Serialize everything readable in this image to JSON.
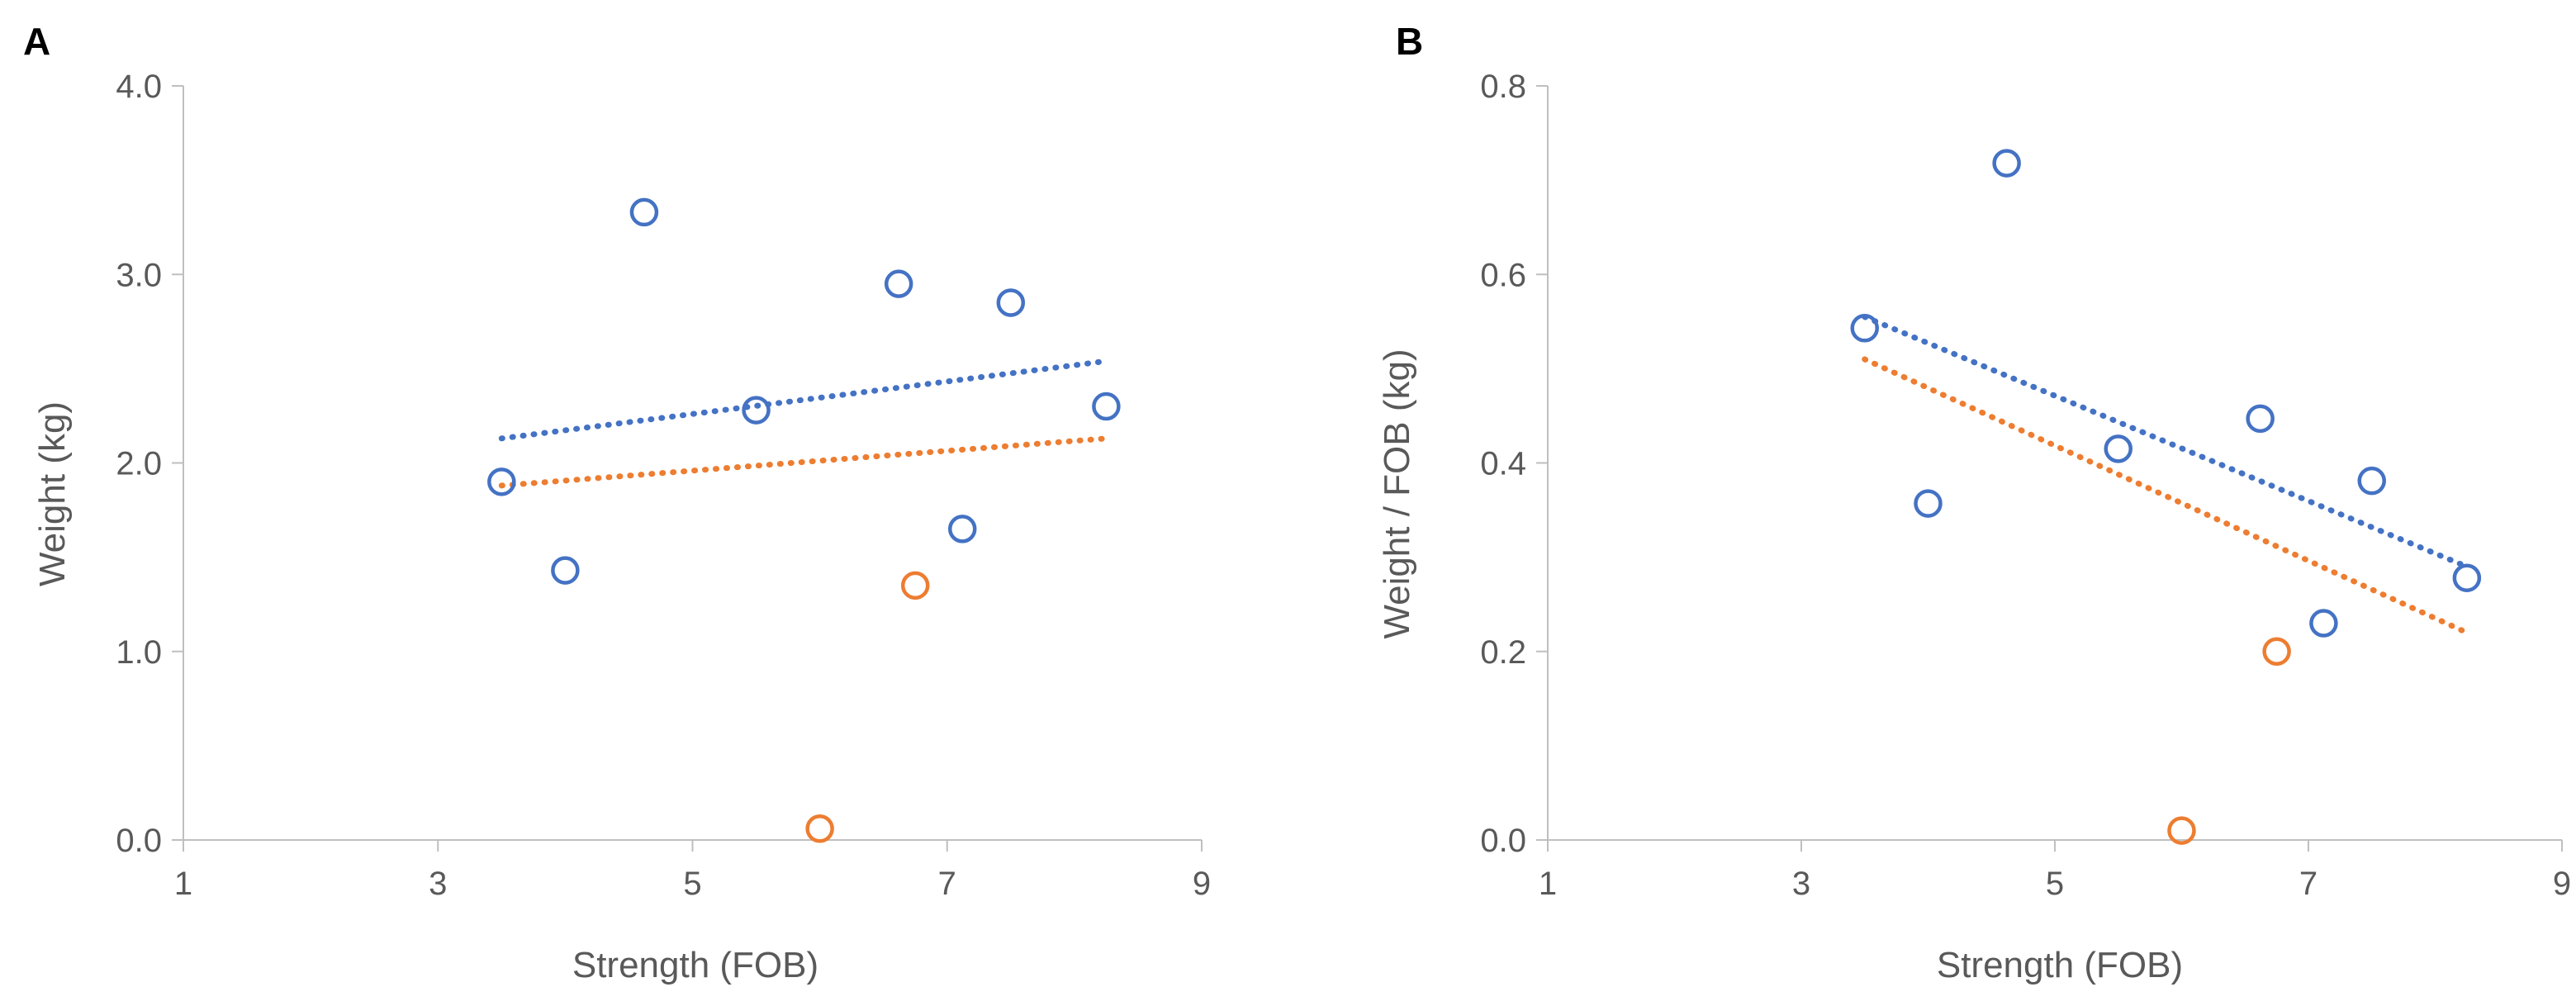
{
  "colors": {
    "series1": "#4472C4",
    "series2": "#ED7D31",
    "axis": "#BFBFBF",
    "text": "#595959",
    "panel_label": "#000000"
  },
  "chart_data": [
    {
      "panel": "A",
      "type": "scatter",
      "title": "",
      "xlabel": "Strength (FOB)",
      "ylabel": "Weight (kg)",
      "xlim": [
        1,
        9
      ],
      "ylim": [
        0.0,
        4.0
      ],
      "xticks": [
        "1",
        "3",
        "5",
        "7",
        "9"
      ],
      "yticks": [
        "0.0",
        "1.0",
        "2.0",
        "3.0",
        "4.0"
      ],
      "grid": false,
      "legend": "none",
      "series": [
        {
          "name": "series 1 (blue)",
          "marker": "open-circle",
          "points": [
            {
              "x": 3.5,
              "y": 1.9
            },
            {
              "x": 4.0,
              "y": 1.43
            },
            {
              "x": 4.62,
              "y": 3.33
            },
            {
              "x": 5.5,
              "y": 2.28
            },
            {
              "x": 6.62,
              "y": 2.95
            },
            {
              "x": 7.12,
              "y": 1.65
            },
            {
              "x": 7.5,
              "y": 2.85
            },
            {
              "x": 8.25,
              "y": 2.3
            }
          ],
          "trendline": {
            "style": "dotted",
            "x1": 3.5,
            "y1": 2.13,
            "x2": 8.25,
            "y2": 2.54
          }
        },
        {
          "name": "series 2 (orange)",
          "marker": "open-circle",
          "points": [
            {
              "x": 6.0,
              "y": 0.06
            },
            {
              "x": 6.75,
              "y": 1.35
            }
          ],
          "trendline": {
            "style": "dotted",
            "x1": 3.5,
            "y1": 1.88,
            "x2": 8.25,
            "y2": 2.13
          }
        }
      ]
    },
    {
      "panel": "B",
      "type": "scatter",
      "title": "",
      "xlabel": "Strength (FOB)",
      "ylabel": "Weight / FOB (kg)",
      "xlim": [
        1,
        9
      ],
      "ylim": [
        0.0,
        0.8
      ],
      "xticks": [
        "1",
        "3",
        "5",
        "7",
        "9"
      ],
      "yticks": [
        "0.0",
        "0.2",
        "0.4",
        "0.6",
        "0.8"
      ],
      "grid": false,
      "legend": "none",
      "series": [
        {
          "name": "series 1 (blue)",
          "marker": "open-circle",
          "points": [
            {
              "x": 3.5,
              "y": 0.543
            },
            {
              "x": 4.0,
              "y": 0.357
            },
            {
              "x": 4.62,
              "y": 0.718
            },
            {
              "x": 5.5,
              "y": 0.415
            },
            {
              "x": 6.62,
              "y": 0.447
            },
            {
              "x": 7.12,
              "y": 0.23
            },
            {
              "x": 7.5,
              "y": 0.381
            },
            {
              "x": 8.25,
              "y": 0.278
            }
          ],
          "trendline": {
            "style": "dotted",
            "x1": 3.5,
            "y1": 0.555,
            "x2": 8.25,
            "y2": 0.29
          }
        },
        {
          "name": "series 2 (orange)",
          "marker": "open-circle",
          "points": [
            {
              "x": 6.0,
              "y": 0.01
            },
            {
              "x": 6.75,
              "y": 0.2
            }
          ],
          "trendline": {
            "style": "dotted",
            "x1": 3.5,
            "y1": 0.51,
            "x2": 8.25,
            "y2": 0.22
          }
        }
      ]
    }
  ]
}
